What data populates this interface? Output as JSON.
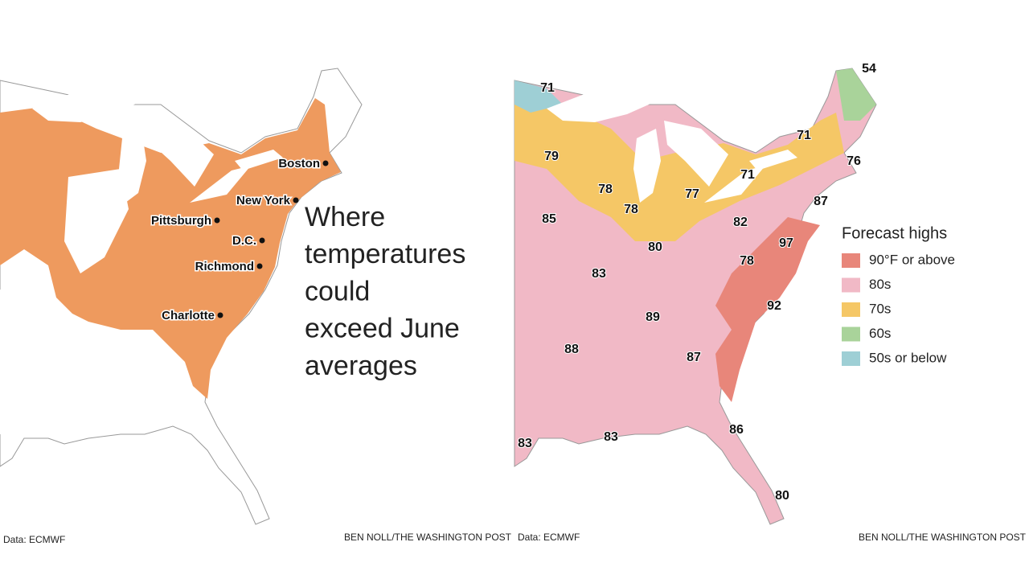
{
  "left_map": {
    "cities": [
      "Boston",
      "New York",
      "Pittsburgh",
      "D.C.",
      "Richmond",
      "Charlotte"
    ],
    "headline": [
      "Where",
      "temperatures",
      "could",
      "exceed June",
      "averages"
    ],
    "source": "Data: ECMWF",
    "credit": "BEN NOLL/THE WASHINGTON POST"
  },
  "right_map": {
    "legend": {
      "title": "Forecast highs",
      "items": [
        {
          "label": "90°F or above",
          "color": "#e8867a"
        },
        {
          "label": "80s",
          "color": "#f1b9c6"
        },
        {
          "label": "70s",
          "color": "#f5c766"
        },
        {
          "label": "60s",
          "color": "#a9d39a"
        },
        {
          "label": "50s or below",
          "color": "#9ecfd5"
        }
      ]
    },
    "temperatures": [
      71,
      54,
      79,
      78,
      78,
      77,
      71,
      71,
      76,
      87,
      85,
      82,
      97,
      80,
      78,
      83,
      92,
      89,
      88,
      87,
      86,
      83,
      83,
      80
    ],
    "source": "Data: ECMWF",
    "credit": "BEN NOLL/THE WASHINGTON POST"
  }
}
